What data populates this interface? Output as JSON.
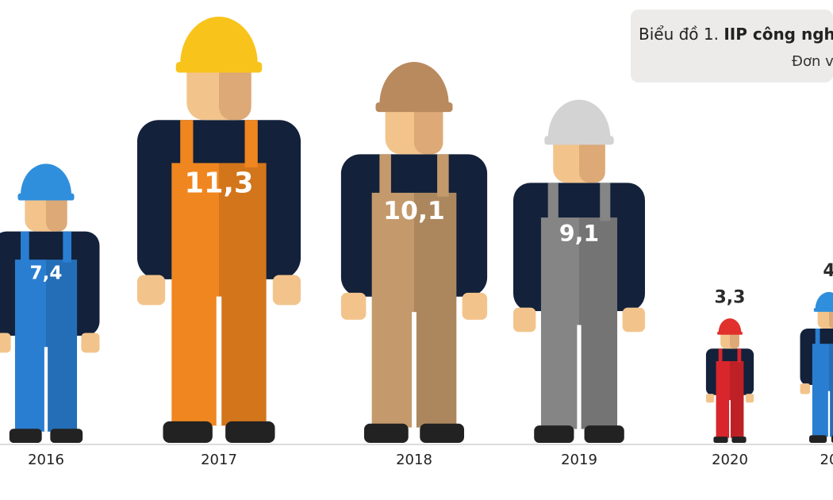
{
  "chart_data": {
    "type": "pictogram",
    "title_prefix": "Biểu đồ 1. ",
    "title_bold": "IIP công ngh",
    "subtitle": "Đơn v",
    "categories": [
      "2016",
      "2017",
      "2018",
      "2019",
      "2020",
      "20"
    ],
    "values": [
      7.4,
      11.3,
      10.1,
      9.1,
      3.3,
      4
    ],
    "value_labels": [
      "7,4",
      "11,3",
      "10,1",
      "9,1",
      "3,3",
      "4"
    ],
    "colors": [
      "#2a7ed1",
      "#f0861f",
      "#c49a6c",
      "#858585",
      "#d8262c",
      "#2a7ed1"
    ],
    "helmet_colors": [
      "#2f8fdc",
      "#f8c41b",
      "#b98a5e",
      "#d3d3d3",
      "#e0312c",
      "#2f8fdc"
    ]
  }
}
